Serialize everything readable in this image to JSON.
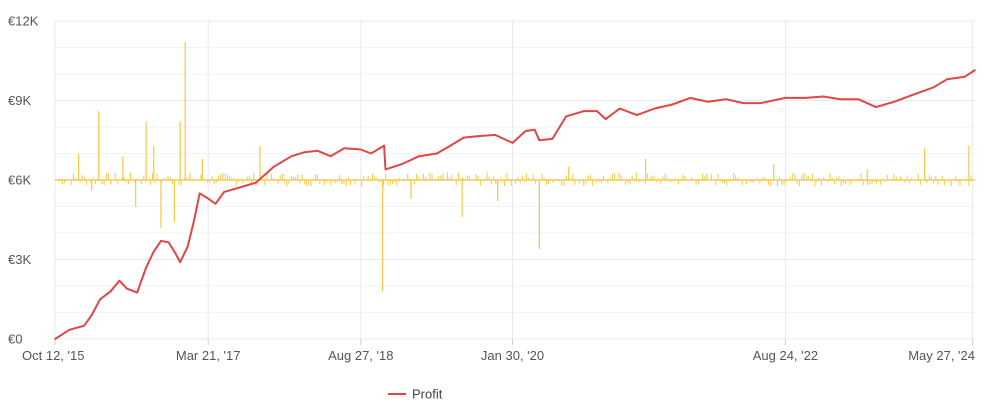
{
  "chart_data": {
    "type": "line",
    "title": "",
    "xlabel": "",
    "ylabel": "",
    "ylim": [
      0,
      12000
    ],
    "grid": true,
    "legend_position": "bottom",
    "x_tick_labels": [
      "Oct 12, '15",
      "Mar 21, '17",
      "Aug 27, '18",
      "Jan 30, '20",
      "Aug 24, '22",
      "May 27, '24"
    ],
    "x_tick_dates": [
      "2015-10-12",
      "2017-03-21",
      "2018-08-27",
      "2020-01-30",
      "2022-08-24",
      "2024-05-27"
    ],
    "y_tick_labels": [
      "€0",
      "€3K",
      "€6K",
      "€9K",
      "€12K"
    ],
    "y_tick_values": [
      0,
      3000,
      6000,
      9000,
      12000
    ],
    "x_range": [
      "2015-10-12",
      "2024-06-05"
    ],
    "colors": {
      "profit": "#e04646",
      "daily": "#f5c842",
      "grid": "#e9e9e9"
    },
    "series": [
      {
        "name": "Profit",
        "kind": "line",
        "points": [
          [
            "2015-10-12",
            0
          ],
          [
            "2015-12-01",
            350
          ],
          [
            "2016-01-20",
            500
          ],
          [
            "2016-02-15",
            900
          ],
          [
            "2016-03-15",
            1500
          ],
          [
            "2016-04-20",
            1800
          ],
          [
            "2016-05-20",
            2200
          ],
          [
            "2016-06-15",
            1900
          ],
          [
            "2016-07-20",
            1750
          ],
          [
            "2016-08-20",
            2700
          ],
          [
            "2016-09-15",
            3300
          ],
          [
            "2016-10-10",
            3700
          ],
          [
            "2016-11-05",
            3650
          ],
          [
            "2016-11-25",
            3300
          ],
          [
            "2016-12-15",
            2900
          ],
          [
            "2017-01-10",
            3500
          ],
          [
            "2017-02-01",
            4500
          ],
          [
            "2017-02-20",
            5500
          ],
          [
            "2017-03-21",
            5300
          ],
          [
            "2017-04-15",
            5100
          ],
          [
            "2017-05-15",
            5550
          ],
          [
            "2017-07-01",
            5700
          ],
          [
            "2017-09-01",
            5900
          ],
          [
            "2017-11-01",
            6500
          ],
          [
            "2018-01-01",
            6900
          ],
          [
            "2018-02-15",
            7050
          ],
          [
            "2018-04-01",
            7100
          ],
          [
            "2018-05-15",
            6900
          ],
          [
            "2018-07-01",
            7200
          ],
          [
            "2018-08-27",
            7150
          ],
          [
            "2018-10-01",
            7000
          ],
          [
            "2018-11-15",
            7300
          ],
          [
            "2018-11-20",
            6400
          ],
          [
            "2019-01-15",
            6600
          ],
          [
            "2019-03-15",
            6900
          ],
          [
            "2019-05-15",
            7000
          ],
          [
            "2019-07-01",
            7300
          ],
          [
            "2019-08-15",
            7600
          ],
          [
            "2019-10-01",
            7650
          ],
          [
            "2019-12-01",
            7700
          ],
          [
            "2020-01-30",
            7400
          ],
          [
            "2020-03-15",
            7850
          ],
          [
            "2020-04-15",
            7900
          ],
          [
            "2020-05-01",
            7500
          ],
          [
            "2020-06-15",
            7550
          ],
          [
            "2020-08-01",
            8400
          ],
          [
            "2020-10-01",
            8600
          ],
          [
            "2020-11-15",
            8600
          ],
          [
            "2020-12-15",
            8300
          ],
          [
            "2021-02-01",
            8700
          ],
          [
            "2021-04-01",
            8450
          ],
          [
            "2021-06-01",
            8700
          ],
          [
            "2021-08-01",
            8850
          ],
          [
            "2021-10-01",
            9100
          ],
          [
            "2021-12-01",
            8950
          ],
          [
            "2022-02-01",
            9050
          ],
          [
            "2022-04-01",
            8900
          ],
          [
            "2022-06-01",
            8900
          ],
          [
            "2022-08-24",
            9100
          ],
          [
            "2022-11-01",
            9100
          ],
          [
            "2023-01-01",
            9150
          ],
          [
            "2023-03-01",
            9050
          ],
          [
            "2023-05-01",
            9050
          ],
          [
            "2023-07-01",
            8750
          ],
          [
            "2023-09-01",
            8950
          ],
          [
            "2023-11-01",
            9200
          ],
          [
            "2024-01-15",
            9500
          ],
          [
            "2024-03-01",
            9800
          ],
          [
            "2024-05-01",
            9900
          ],
          [
            "2024-06-05",
            10150
          ]
        ]
      },
      {
        "name": "",
        "kind": "bars",
        "baseline": 6000,
        "points": [
          [
            "2016-01-01",
            7000
          ],
          [
            "2016-02-15",
            5600
          ],
          [
            "2016-03-10",
            8600
          ],
          [
            "2016-06-01",
            6900
          ],
          [
            "2016-07-15",
            5000
          ],
          [
            "2016-08-20",
            8200
          ],
          [
            "2016-09-15",
            7300
          ],
          [
            "2016-10-10",
            4200
          ],
          [
            "2016-11-25",
            4400
          ],
          [
            "2016-12-15",
            8200
          ],
          [
            "2017-01-01",
            11200
          ],
          [
            "2017-03-01",
            6800
          ],
          [
            "2017-09-15",
            7300
          ],
          [
            "2018-11-10",
            1800
          ],
          [
            "2019-02-15",
            5300
          ],
          [
            "2019-08-10",
            4600
          ],
          [
            "2019-12-10",
            5200
          ],
          [
            "2020-05-01",
            3400
          ],
          [
            "2020-08-10",
            6500
          ],
          [
            "2021-05-01",
            6800
          ],
          [
            "2022-07-15",
            6600
          ],
          [
            "2023-06-01",
            6400
          ],
          [
            "2023-12-15",
            7200
          ],
          [
            "2024-05-15",
            7300
          ]
        ]
      }
    ]
  },
  "legend": {
    "profit_label": "Profit"
  }
}
